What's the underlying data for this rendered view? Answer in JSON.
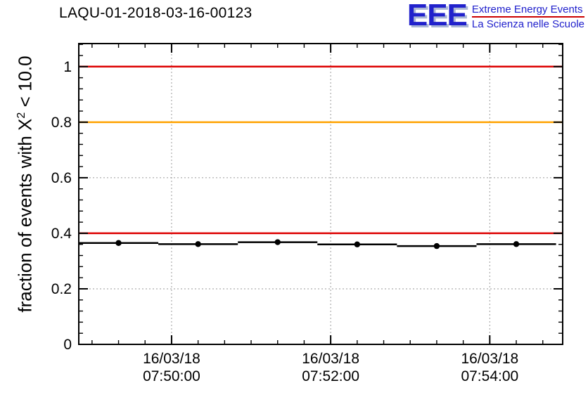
{
  "header": {
    "title": "LAQU-01-2018-03-16-00123"
  },
  "logo": {
    "acronym": "EEE",
    "line1": "Extreme Energy Events",
    "line2": "La Scienza nelle Scuole",
    "blue": "#2121cc",
    "red": "#cc0000"
  },
  "ylabel": {
    "prefix": "fraction of events with X",
    "sup": "2",
    "suffix": " < 10.0"
  },
  "chart_data": {
    "type": "line",
    "title": "LAQU-01-2018-03-16-00123",
    "xlabel": "",
    "ylabel": "fraction of events with X^2 < 10.0",
    "ylim": [
      0,
      1.083
    ],
    "grid": true,
    "legend": "none",
    "x_window": {
      "start": "07:48:50",
      "end": "07:54:55",
      "start_seconds": 28130,
      "end_seconds": 28495
    },
    "y_ticks": [
      0,
      0.2,
      0.4,
      0.6,
      0.8,
      1
    ],
    "x_ticks": [
      {
        "seconds": 28200,
        "date": "16/03/18",
        "time": "07:50:00"
      },
      {
        "seconds": 28320,
        "date": "16/03/18",
        "time": "07:52:00"
      },
      {
        "seconds": 28440,
        "date": "16/03/18",
        "time": "07:54:00"
      }
    ],
    "reference_lines": [
      {
        "value": 1.0,
        "color": "#dd0000"
      },
      {
        "value": 0.8,
        "color": "#ffa200"
      },
      {
        "value": 0.4,
        "color": "#dd0000"
      }
    ],
    "series": [
      {
        "name": "fraction of events with chi2 < 10",
        "color": "#000000",
        "marker": "circle",
        "points": [
          {
            "time": "07:49:20",
            "seconds": 28160,
            "value": 0.365,
            "xerr_seconds": 30
          },
          {
            "time": "07:50:20",
            "seconds": 28220,
            "value": 0.361,
            "xerr_seconds": 30
          },
          {
            "time": "07:51:20",
            "seconds": 28280,
            "value": 0.368,
            "xerr_seconds": 30
          },
          {
            "time": "07:52:20",
            "seconds": 28340,
            "value": 0.36,
            "xerr_seconds": 30
          },
          {
            "time": "07:53:20",
            "seconds": 28400,
            "value": 0.354,
            "xerr_seconds": 30
          },
          {
            "time": "07:54:20",
            "seconds": 28460,
            "value": 0.361,
            "xerr_seconds": 30
          }
        ]
      }
    ]
  }
}
